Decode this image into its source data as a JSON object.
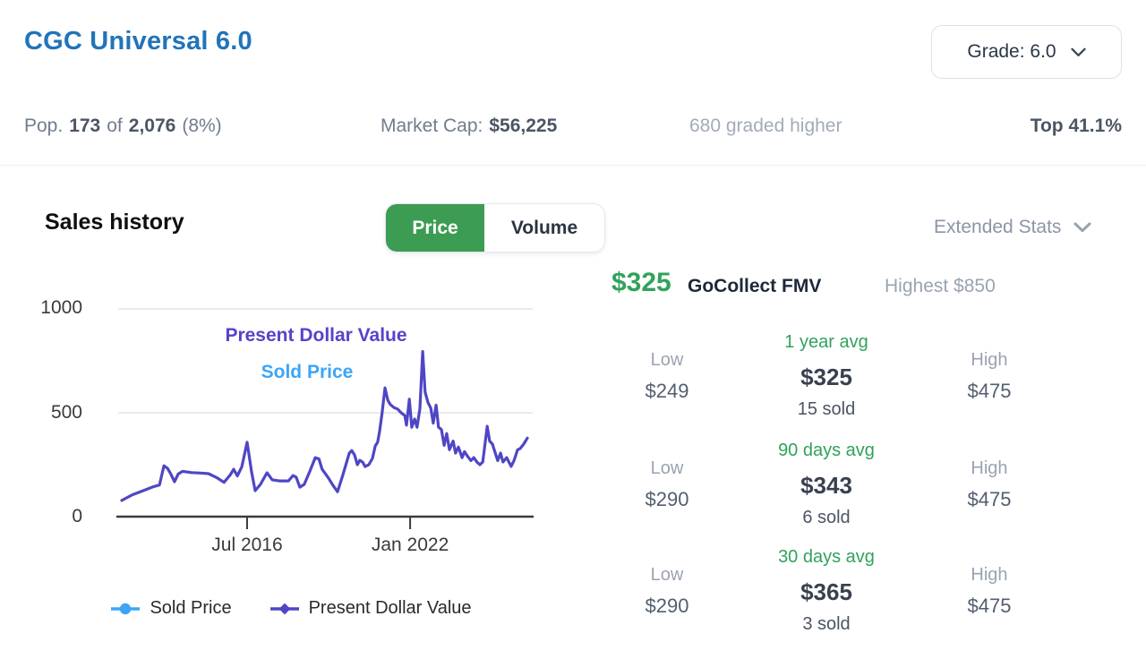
{
  "header": {
    "title": "CGC Universal 6.0",
    "grade_label": "Grade: 6.0"
  },
  "statbar": {
    "pop_label": "Pop.",
    "pop_count": "173",
    "of_label": "of",
    "pop_total": "2,076",
    "pop_pct": "(8%)",
    "market_cap_label": "Market Cap:",
    "market_cap_value": "$56,225",
    "graded_higher": "680 graded higher",
    "top_pct": "Top 41.1%"
  },
  "sales": {
    "heading": "Sales history",
    "toggle": {
      "price": "Price",
      "volume": "Volume",
      "active": "Price"
    },
    "extended_stats": "Extended Stats"
  },
  "fmv": {
    "value": "$325",
    "label": "GoCollect FMV",
    "highest": "Highest $850"
  },
  "stat_rows": [
    {
      "low_label": "Low",
      "low": "$249",
      "avg_label": "1 year avg",
      "avg": "$325",
      "sold": "15 sold",
      "high_label": "High",
      "high": "$475"
    },
    {
      "low_label": "Low",
      "low": "$290",
      "avg_label": "90 days avg",
      "avg": "$343",
      "sold": "6 sold",
      "high_label": "High",
      "high": "$475"
    },
    {
      "low_label": "Low",
      "low": "$290",
      "avg_label": "30 days avg",
      "avg": "$365",
      "sold": "3 sold",
      "high_label": "High",
      "high": "$475"
    }
  ],
  "legend": [
    {
      "label": "Sold Price",
      "color": "#3ca5f6",
      "marker": "circle"
    },
    {
      "label": "Present Dollar Value",
      "color": "#5045c5",
      "marker": "diamond"
    }
  ],
  "colors": {
    "title_blue": "#2174b9",
    "green": "#31a25c",
    "button_green": "#3d9c53",
    "purple": "#5045c5",
    "sold_blue": "#3ca5f6"
  },
  "chart_data": {
    "type": "line",
    "title": "Sales history",
    "ylim": [
      0,
      1000
    ],
    "yticks": [
      0,
      500,
      1000
    ],
    "grid": "horizontal",
    "x_axis": "time",
    "x_ticks": [
      {
        "label": "Jul 2016",
        "pos_pct": 30.9
      },
      {
        "label": "Jan 2022",
        "pos_pct": 71.1
      }
    ],
    "annotations": [
      {
        "text": "Present Dollar Value",
        "color": "#5544c8"
      },
      {
        "text": "Sold Price",
        "color": "#3ca5f6"
      }
    ],
    "legend_position": "bottom",
    "series": [
      {
        "name": "Present Dollar Value",
        "color": "#4f46c5",
        "x_pct": [
          0,
          2.6,
          5.3,
          7.9,
          9.3,
          10.4,
          11.3,
          12.1,
          13,
          13.9,
          15,
          17.2,
          19.4,
          21.4,
          23.4,
          25.2,
          26.7,
          27.6,
          28.5,
          29.6,
          30.9,
          32,
          32.9,
          34.2,
          35.8,
          37.1,
          38.9,
          41.1,
          42.2,
          43,
          43.9,
          45,
          46.4,
          47.7,
          48.6,
          49.4,
          51,
          52.1,
          53.2,
          54.5,
          56.1,
          56.7,
          57.4,
          58.1,
          58.7,
          59.4,
          60,
          60.9,
          61.8,
          62.5,
          63.1,
          63.6,
          64.2,
          64.9,
          65.6,
          66.2,
          67.1,
          68,
          68.9,
          69.8,
          70.2,
          70.9,
          71.5,
          72.2,
          72.8,
          73.5,
          74.2,
          74.8,
          75.5,
          76.2,
          76.8,
          77.5,
          78.1,
          78.8,
          79.5,
          80.1,
          80.8,
          81.7,
          82.3,
          83,
          83.9,
          84.5,
          85.2,
          86.1,
          86.8,
          87.6,
          88.3,
          89,
          90.1,
          90.7,
          91.4,
          92.1,
          92.7,
          93.4,
          94,
          94.9,
          96,
          96.7,
          97.6,
          98.2,
          99.1,
          100
        ],
        "values": [
          78,
          105,
          125,
          145,
          152,
          245,
          232,
          205,
          168,
          205,
          218,
          212,
          210,
          207,
          188,
          165,
          200,
          228,
          196,
          240,
          358,
          215,
          125,
          155,
          211,
          177,
          172,
          172,
          198,
          190,
          142,
          155,
          220,
          284,
          278,
          228,
          185,
          150,
          120,
          200,
          305,
          318,
          297,
          250,
          271,
          262,
          241,
          250,
          280,
          340,
          358,
          414,
          500,
          620,
          560,
          540,
          525,
          518,
          500,
          486,
          440,
          565,
          430,
          470,
          430,
          520,
          795,
          600,
          550,
          522,
          450,
          537,
          430,
          420,
          343,
          400,
          322,
          364,
          306,
          335,
          284,
          313,
          292,
          270,
          284,
          262,
          250,
          263,
          435,
          364,
          349,
          306,
          270,
          306,
          263,
          284,
          242,
          270,
          322,
          327,
          349,
          378
        ]
      },
      {
        "name": "Sold Price",
        "color": "#3ca5f6",
        "overlaps_series": "Present Dollar Value"
      }
    ]
  }
}
